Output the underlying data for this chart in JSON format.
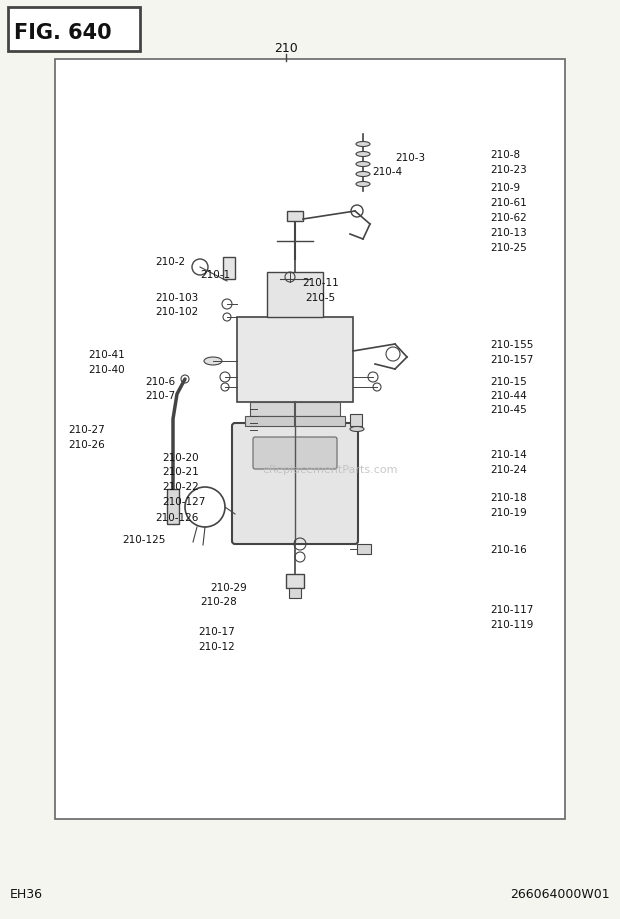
{
  "fig_label": "FIG. 640",
  "top_label": "210",
  "bottom_left": "EH36",
  "bottom_right": "266064000W01",
  "bg_color": "#f5f5f0",
  "border_color": "#444444",
  "text_color": "#111111",
  "watermark": "eReplacementParts.com",
  "figsize": [
    6.2,
    9.2
  ],
  "dpi": 100
}
